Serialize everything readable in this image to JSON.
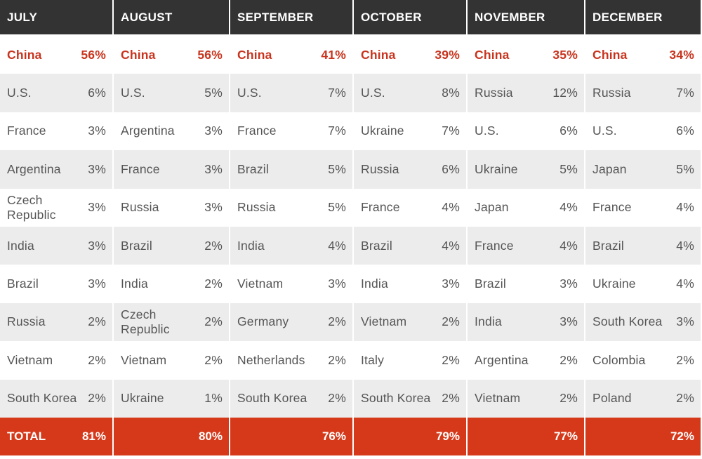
{
  "colors": {
    "header_bg": "#333333",
    "highlight_text": "#c8341e",
    "total_bg": "#d6391a",
    "alt_row_bg": "#ececec"
  },
  "total_label": "TOTAL",
  "columns": [
    {
      "month": "JULY",
      "rows": [
        {
          "country": "China",
          "pct": "56%"
        },
        {
          "country": "U.S.",
          "pct": "6%"
        },
        {
          "country": "France",
          "pct": "3%"
        },
        {
          "country": "Argentina",
          "pct": "3%"
        },
        {
          "country": "Czech Republic",
          "pct": "3%"
        },
        {
          "country": "India",
          "pct": "3%"
        },
        {
          "country": "Brazil",
          "pct": "3%"
        },
        {
          "country": "Russia",
          "pct": "2%"
        },
        {
          "country": "Vietnam",
          "pct": "2%"
        },
        {
          "country": "South Korea",
          "pct": "2%"
        }
      ],
      "total": "81%"
    },
    {
      "month": "AUGUST",
      "rows": [
        {
          "country": "China",
          "pct": "56%"
        },
        {
          "country": "U.S.",
          "pct": "5%"
        },
        {
          "country": "Argentina",
          "pct": "3%"
        },
        {
          "country": "France",
          "pct": "3%"
        },
        {
          "country": "Russia",
          "pct": "3%"
        },
        {
          "country": "Brazil",
          "pct": "2%"
        },
        {
          "country": "India",
          "pct": "2%"
        },
        {
          "country": "Czech Republic",
          "pct": "2%"
        },
        {
          "country": "Vietnam",
          "pct": "2%"
        },
        {
          "country": "Ukraine",
          "pct": "1%"
        }
      ],
      "total": "80%"
    },
    {
      "month": "SEPTEMBER",
      "rows": [
        {
          "country": "China",
          "pct": "41%"
        },
        {
          "country": "U.S.",
          "pct": "7%"
        },
        {
          "country": "France",
          "pct": "7%"
        },
        {
          "country": "Brazil",
          "pct": "5%"
        },
        {
          "country": "Russia",
          "pct": "5%"
        },
        {
          "country": "India",
          "pct": "4%"
        },
        {
          "country": "Vietnam",
          "pct": "3%"
        },
        {
          "country": "Germany",
          "pct": "2%"
        },
        {
          "country": "Netherlands",
          "pct": "2%"
        },
        {
          "country": "South Korea",
          "pct": "2%"
        }
      ],
      "total": "76%"
    },
    {
      "month": "OCTOBER",
      "rows": [
        {
          "country": "China",
          "pct": "39%"
        },
        {
          "country": "U.S.",
          "pct": "8%"
        },
        {
          "country": "Ukraine",
          "pct": "7%"
        },
        {
          "country": "Russia",
          "pct": "6%"
        },
        {
          "country": "France",
          "pct": "4%"
        },
        {
          "country": "Brazil",
          "pct": "4%"
        },
        {
          "country": "India",
          "pct": "3%"
        },
        {
          "country": "Vietnam",
          "pct": "2%"
        },
        {
          "country": "Italy",
          "pct": "2%"
        },
        {
          "country": "South Korea",
          "pct": "2%"
        }
      ],
      "total": "79%"
    },
    {
      "month": "NOVEMBER",
      "rows": [
        {
          "country": "China",
          "pct": "35%"
        },
        {
          "country": "Russia",
          "pct": "12%"
        },
        {
          "country": "U.S.",
          "pct": "6%"
        },
        {
          "country": "Ukraine",
          "pct": "5%"
        },
        {
          "country": "Japan",
          "pct": "4%"
        },
        {
          "country": "France",
          "pct": "4%"
        },
        {
          "country": "Brazil",
          "pct": "3%"
        },
        {
          "country": "India",
          "pct": "3%"
        },
        {
          "country": "Argentina",
          "pct": "2%"
        },
        {
          "country": "Vietnam",
          "pct": "2%"
        }
      ],
      "total": "77%"
    },
    {
      "month": "DECEMBER",
      "rows": [
        {
          "country": "China",
          "pct": "34%"
        },
        {
          "country": "Russia",
          "pct": "7%"
        },
        {
          "country": "U.S.",
          "pct": "6%"
        },
        {
          "country": "Japan",
          "pct": "5%"
        },
        {
          "country": "France",
          "pct": "4%"
        },
        {
          "country": "Brazil",
          "pct": "4%"
        },
        {
          "country": "Ukraine",
          "pct": "4%"
        },
        {
          "country": "South Korea",
          "pct": "3%"
        },
        {
          "country": "Colombia",
          "pct": "2%"
        },
        {
          "country": "Poland",
          "pct": "2%"
        }
      ],
      "total": "72%"
    }
  ]
}
